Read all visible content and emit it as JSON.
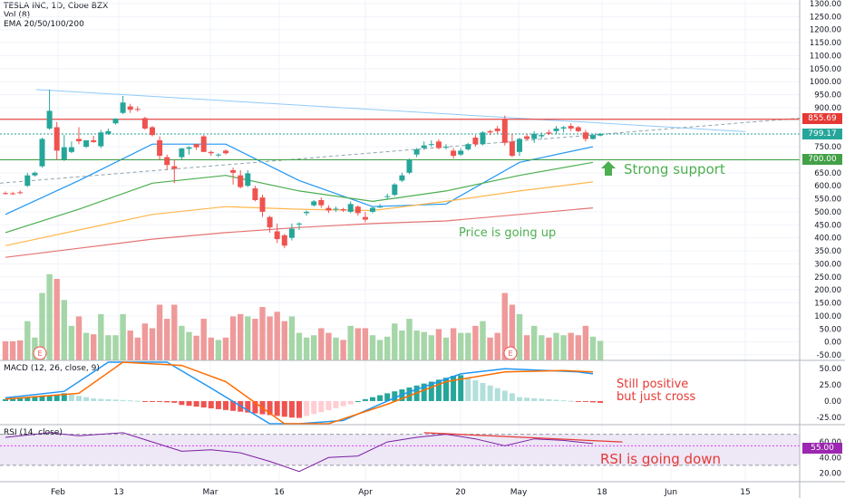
{
  "header": {
    "symbol": "TESLA INC, 1D, Cboe BZX",
    "vol_label": "Vol (8)",
    "ema_label": "EMA 20/50/100/200"
  },
  "macd_label": "MACD (12, 26, close, 9)",
  "rsi_label": "RSI (14, close)",
  "annotations": {
    "strong_support": "Strong support",
    "price_up": "Price is going up",
    "macd_line1": "Still positive",
    "macd_line2": "but just cross",
    "rsi_down": "RSI is going down"
  },
  "earnings_marker": "E",
  "price_tags": {
    "resistance": "855.69",
    "last": "799.17",
    "support": "700.00",
    "rsi": "55.00"
  },
  "colors": {
    "up": "#26a69a",
    "down": "#ef5350",
    "resistance": "#e53935",
    "support": "#43a047",
    "ema20": "#2196f3",
    "ema50": "#4caf50",
    "ema100": "#ffb74d",
    "ema200": "#e57373",
    "trendline": "#90caf9",
    "annotation_green": "#4caf50",
    "annotation_red": "#e53935",
    "macd_line": "#2196f3",
    "signal_line": "#ff6d00",
    "rsi_line": "#7b1fa2",
    "rsi_band": "#ede7f6"
  },
  "chart_data": [
    {
      "type": "candlestick",
      "title": "TESLA INC, 1D, Cboe BZX",
      "y_axis_ticks": [
        "1300.00",
        "1250.00",
        "1200.00",
        "1150.00",
        "1100.00",
        "1050.00",
        "1000.00",
        "950.00",
        "900.00",
        "850.00",
        "800.00",
        "750.00",
        "700.00",
        "650.00",
        "600.00",
        "550.00",
        "500.00",
        "450.00",
        "400.00",
        "350.00",
        "300.00",
        "250.00",
        "200.00",
        "150.00",
        "100.00",
        "50.00",
        "0.00",
        "-50.00"
      ],
      "x_axis_ticks": [
        "Feb",
        "13",
        "Mar",
        "16",
        "Apr",
        "20",
        "May",
        "18",
        "Jun",
        "15"
      ],
      "ylim": [
        -50,
        1300
      ],
      "horizontal_levels": [
        {
          "value": 855.69,
          "label": "855.69"
        },
        {
          "value": 799.17,
          "label": "799.17"
        },
        {
          "value": 700.0,
          "label": "700.00"
        }
      ],
      "candles": [
        {
          "date": "Jan 27",
          "o": 572,
          "h": 578,
          "l": 566,
          "c": 570
        },
        {
          "date": "Jan 28",
          "o": 571,
          "h": 577,
          "l": 565,
          "c": 568
        },
        {
          "date": "Jan 29",
          "o": 575,
          "h": 582,
          "l": 568,
          "c": 572
        },
        {
          "date": "Jan 30",
          "o": 600,
          "h": 650,
          "l": 595,
          "c": 640
        },
        {
          "date": "Jan 31",
          "o": 640,
          "h": 655,
          "l": 635,
          "c": 650
        },
        {
          "date": "Feb 3",
          "o": 675,
          "h": 785,
          "l": 670,
          "c": 780
        },
        {
          "date": "Feb 4",
          "o": 820,
          "h": 970,
          "l": 815,
          "c": 888
        },
        {
          "date": "Feb 5",
          "o": 825,
          "h": 845,
          "l": 700,
          "c": 735
        },
        {
          "date": "Feb 6",
          "o": 700,
          "h": 795,
          "l": 695,
          "c": 748
        },
        {
          "date": "Feb 7",
          "o": 730,
          "h": 770,
          "l": 725,
          "c": 748
        },
        {
          "date": "Feb 10",
          "o": 780,
          "h": 825,
          "l": 760,
          "c": 771
        },
        {
          "date": "Feb 11",
          "o": 750,
          "h": 775,
          "l": 745,
          "c": 775
        },
        {
          "date": "Feb 12",
          "o": 775,
          "h": 792,
          "l": 765,
          "c": 768
        },
        {
          "date": "Feb 13",
          "o": 752,
          "h": 815,
          "l": 745,
          "c": 805
        },
        {
          "date": "Feb 14",
          "o": 800,
          "h": 820,
          "l": 795,
          "c": 810
        },
        {
          "date": "Feb 18",
          "o": 840,
          "h": 860,
          "l": 835,
          "c": 858
        },
        {
          "date": "Feb 19",
          "o": 880,
          "h": 945,
          "l": 875,
          "c": 920
        },
        {
          "date": "Feb 20",
          "o": 905,
          "h": 915,
          "l": 880,
          "c": 892
        },
        {
          "date": "Feb 21",
          "o": 895,
          "h": 905,
          "l": 885,
          "c": 892
        },
        {
          "date": "Feb 24",
          "o": 860,
          "h": 865,
          "l": 815,
          "c": 820
        },
        {
          "date": "Feb 25",
          "o": 825,
          "h": 830,
          "l": 790,
          "c": 795
        },
        {
          "date": "Feb 26",
          "o": 775,
          "h": 790,
          "l": 700,
          "c": 715
        },
        {
          "date": "Feb 27",
          "o": 710,
          "h": 720,
          "l": 660,
          "c": 680
        },
        {
          "date": "Feb 28",
          "o": 675,
          "h": 700,
          "l": 610,
          "c": 665
        },
        {
          "date": "Mar 2",
          "o": 710,
          "h": 745,
          "l": 700,
          "c": 744
        },
        {
          "date": "Mar 3",
          "o": 742,
          "h": 752,
          "l": 720,
          "c": 748
        },
        {
          "date": "Mar 4",
          "o": 760,
          "h": 762,
          "l": 738,
          "c": 748
        },
        {
          "date": "Mar 5",
          "o": 790,
          "h": 795,
          "l": 735,
          "c": 730
        },
        {
          "date": "Mar 6",
          "o": 730,
          "h": 735,
          "l": 715,
          "c": 725
        },
        {
          "date": "Mar 9",
          "o": 720,
          "h": 725,
          "l": 710,
          "c": 720
        },
        {
          "date": "Mar 10",
          "o": 735,
          "h": 740,
          "l": 720,
          "c": 725
        },
        {
          "date": "Mar 11",
          "o": 660,
          "h": 670,
          "l": 605,
          "c": 650
        },
        {
          "date": "Mar 12",
          "o": 640,
          "h": 660,
          "l": 590,
          "c": 595
        },
        {
          "date": "Mar 13",
          "o": 600,
          "h": 660,
          "l": 595,
          "c": 648
        },
        {
          "date": "Mar 16",
          "o": 590,
          "h": 600,
          "l": 540,
          "c": 545
        },
        {
          "date": "Mar 17",
          "o": 555,
          "h": 565,
          "l": 480,
          "c": 500
        },
        {
          "date": "Mar 18",
          "o": 480,
          "h": 485,
          "l": 420,
          "c": 440
        },
        {
          "date": "Mar 19",
          "o": 425,
          "h": 455,
          "l": 380,
          "c": 395
        },
        {
          "date": "Mar 20",
          "o": 410,
          "h": 415,
          "l": 360,
          "c": 370
        },
        {
          "date": "Mar 23",
          "o": 400,
          "h": 455,
          "l": 390,
          "c": 435
        },
        {
          "date": "Mar 24",
          "o": 455,
          "h": 460,
          "l": 430,
          "c": 455
        },
        {
          "date": "Mar 25",
          "o": 495,
          "h": 505,
          "l": 485,
          "c": 500
        },
        {
          "date": "Mar 26",
          "o": 525,
          "h": 545,
          "l": 520,
          "c": 540
        },
        {
          "date": "Mar 27",
          "o": 545,
          "h": 555,
          "l": 515,
          "c": 525
        },
        {
          "date": "Mar 30",
          "o": 515,
          "h": 525,
          "l": 495,
          "c": 505
        },
        {
          "date": "Mar 31",
          "o": 510,
          "h": 520,
          "l": 500,
          "c": 512
        },
        {
          "date": "Apr 1",
          "o": 510,
          "h": 515,
          "l": 500,
          "c": 505
        },
        {
          "date": "Apr 2",
          "o": 500,
          "h": 540,
          "l": 495,
          "c": 530
        },
        {
          "date": "Apr 3",
          "o": 520,
          "h": 525,
          "l": 485,
          "c": 495
        },
        {
          "date": "Apr 6",
          "o": 480,
          "h": 500,
          "l": 460,
          "c": 470
        },
        {
          "date": "Apr 7",
          "o": 500,
          "h": 520,
          "l": 495,
          "c": 515
        },
        {
          "date": "Apr 8",
          "o": 520,
          "h": 530,
          "l": 515,
          "c": 520
        },
        {
          "date": "Apr 9",
          "o": 560,
          "h": 570,
          "l": 548,
          "c": 560
        },
        {
          "date": "Apr 13",
          "o": 565,
          "h": 610,
          "l": 560,
          "c": 605
        },
        {
          "date": "Apr 14",
          "o": 620,
          "h": 650,
          "l": 615,
          "c": 640
        },
        {
          "date": "Apr 15",
          "o": 650,
          "h": 705,
          "l": 645,
          "c": 700
        },
        {
          "date": "Apr 16",
          "o": 720,
          "h": 745,
          "l": 710,
          "c": 740
        },
        {
          "date": "Apr 17",
          "o": 745,
          "h": 770,
          "l": 738,
          "c": 755
        },
        {
          "date": "Apr 20",
          "o": 760,
          "h": 775,
          "l": 750,
          "c": 760
        },
        {
          "date": "Apr 21",
          "o": 770,
          "h": 778,
          "l": 740,
          "c": 745
        },
        {
          "date": "Apr 22",
          "o": 750,
          "h": 760,
          "l": 740,
          "c": 750
        },
        {
          "date": "Apr 23",
          "o": 735,
          "h": 745,
          "l": 705,
          "c": 715
        },
        {
          "date": "Apr 24",
          "o": 720,
          "h": 745,
          "l": 715,
          "c": 735
        },
        {
          "date": "Apr 27",
          "o": 740,
          "h": 765,
          "l": 735,
          "c": 760
        },
        {
          "date": "Apr 28",
          "o": 785,
          "h": 795,
          "l": 750,
          "c": 760
        },
        {
          "date": "Apr 29",
          "o": 760,
          "h": 810,
          "l": 755,
          "c": 805
        },
        {
          "date": "Apr 30",
          "o": 810,
          "h": 815,
          "l": 795,
          "c": 805
        },
        {
          "date": "May 1",
          "o": 820,
          "h": 830,
          "l": 800,
          "c": 810
        },
        {
          "date": "May 4",
          "o": 855,
          "h": 870,
          "l": 755,
          "c": 765
        },
        {
          "date": "May 5",
          "o": 770,
          "h": 800,
          "l": 710,
          "c": 715
        },
        {
          "date": "May 6",
          "o": 730,
          "h": 785,
          "l": 715,
          "c": 780
        },
        {
          "date": "May 7",
          "o": 790,
          "h": 800,
          "l": 775,
          "c": 780
        },
        {
          "date": "May 8",
          "o": 780,
          "h": 810,
          "l": 765,
          "c": 800
        },
        {
          "date": "May 11",
          "o": 790,
          "h": 805,
          "l": 780,
          "c": 795
        },
        {
          "date": "May 12",
          "o": 805,
          "h": 815,
          "l": 795,
          "c": 800
        },
        {
          "date": "May 13",
          "o": 810,
          "h": 830,
          "l": 800,
          "c": 820
        },
        {
          "date": "May 14",
          "o": 820,
          "h": 830,
          "l": 805,
          "c": 825
        },
        {
          "date": "May 15",
          "o": 830,
          "h": 840,
          "l": 810,
          "c": 820
        },
        {
          "date": "May 18",
          "o": 825,
          "h": 830,
          "l": 805,
          "c": 810
        },
        {
          "date": "May 19",
          "o": 805,
          "h": 815,
          "l": 770,
          "c": 780
        },
        {
          "date": "May 20",
          "o": 780,
          "h": 800,
          "l": 778,
          "c": 795
        },
        {
          "date": "May 21",
          "o": 793,
          "h": 803,
          "l": 790,
          "c": 799
        }
      ],
      "volume_scale_max": 270,
      "ema": [
        {
          "name": "EMA 20",
          "points": [
            [
              0,
              490
            ],
            [
              10,
              620
            ],
            [
              20,
              760
            ],
            [
              30,
              760
            ],
            [
              40,
              620
            ],
            [
              50,
              520
            ],
            [
              60,
              530
            ],
            [
              70,
              690
            ],
            [
              80,
              750
            ]
          ]
        },
        {
          "name": "EMA 50",
          "points": [
            [
              0,
              420
            ],
            [
              10,
              510
            ],
            [
              20,
              610
            ],
            [
              30,
              640
            ],
            [
              40,
              580
            ],
            [
              50,
              540
            ],
            [
              60,
              580
            ],
            [
              70,
              640
            ],
            [
              80,
              690
            ]
          ]
        },
        {
          "name": "EMA 100",
          "points": [
            [
              0,
              370
            ],
            [
              10,
              430
            ],
            [
              20,
              490
            ],
            [
              30,
              520
            ],
            [
              40,
              510
            ],
            [
              50,
              505
            ],
            [
              60,
              540
            ],
            [
              70,
              580
            ],
            [
              80,
              615
            ]
          ]
        },
        {
          "name": "EMA 200",
          "points": [
            [
              0,
              325
            ],
            [
              10,
              360
            ],
            [
              20,
              395
            ],
            [
              30,
              420
            ],
            [
              40,
              440
            ],
            [
              50,
              455
            ],
            [
              60,
              465
            ],
            [
              70,
              490
            ],
            [
              80,
              515
            ]
          ]
        }
      ]
    },
    {
      "type": "bar",
      "title": "MACD (12, 26, close, 9)",
      "y_axis_ticks": [
        "50.00",
        "25.00",
        "0.00",
        "-25.00"
      ],
      "ylim": [
        -35,
        60
      ]
    },
    {
      "type": "line",
      "title": "RSI (14, close)",
      "y_axis_ticks": [
        "60.00",
        "40.00",
        "20.00"
      ],
      "ylim": [
        10,
        80
      ],
      "levels": [
        70,
        55,
        30
      ]
    }
  ]
}
